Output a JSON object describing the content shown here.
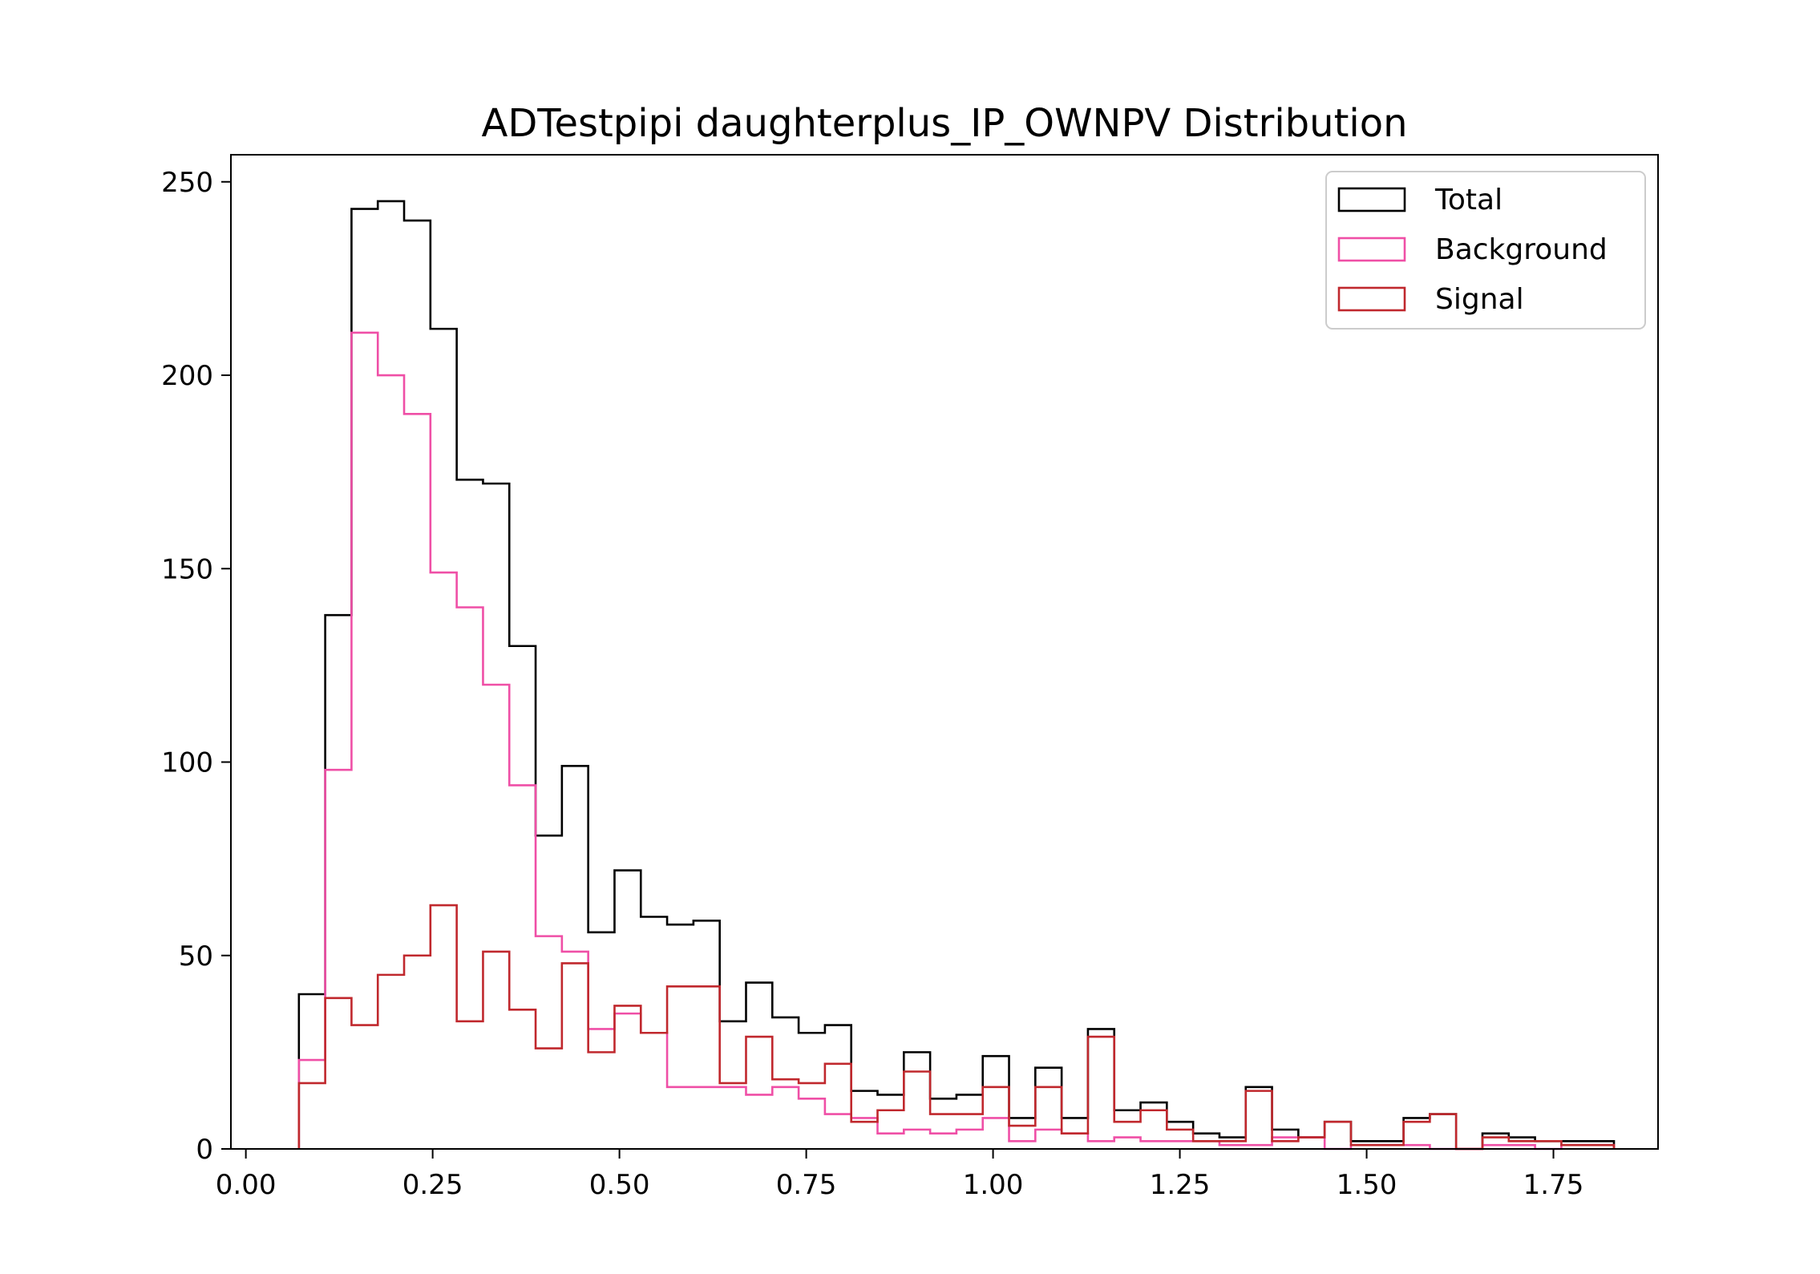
{
  "chart_data": {
    "type": "histogram",
    "title": "ADTestpipi daughterplus_IP_OWNPV Distribution",
    "xlabel": "",
    "ylabel": "",
    "xlim": [
      -0.02,
      1.89
    ],
    "ylim": [
      0,
      257
    ],
    "grid": false,
    "legend_position": "upper right",
    "x_ticks": [
      {
        "value": 0.0,
        "label": "0.00"
      },
      {
        "value": 0.25,
        "label": "0.25"
      },
      {
        "value": 0.5,
        "label": "0.50"
      },
      {
        "value": 0.75,
        "label": "0.75"
      },
      {
        "value": 1.0,
        "label": "1.00"
      },
      {
        "value": 1.25,
        "label": "1.25"
      },
      {
        "value": 1.5,
        "label": "1.50"
      },
      {
        "value": 1.75,
        "label": "1.75"
      }
    ],
    "y_ticks": [
      {
        "value": 0,
        "label": "0"
      },
      {
        "value": 50,
        "label": "50"
      },
      {
        "value": 100,
        "label": "100"
      },
      {
        "value": 150,
        "label": "150"
      },
      {
        "value": 200,
        "label": "200"
      },
      {
        "value": 250,
        "label": "250"
      }
    ],
    "bin_edges": [
      0.071,
      0.1062,
      0.1414,
      0.1766,
      0.2118,
      0.247,
      0.2822,
      0.3174,
      0.3526,
      0.3878,
      0.423,
      0.4582,
      0.4934,
      0.5286,
      0.5638,
      0.599,
      0.6342,
      0.6694,
      0.7046,
      0.7398,
      0.775,
      0.8102,
      0.8454,
      0.8806,
      0.9158,
      0.951,
      0.9862,
      1.0214,
      1.0566,
      1.0918,
      1.127,
      1.1622,
      1.1974,
      1.2326,
      1.2678,
      1.303,
      1.3382,
      1.3734,
      1.4086,
      1.4438,
      1.479,
      1.5142,
      1.5494,
      1.5846,
      1.6198,
      1.655,
      1.6902,
      1.7254,
      1.7606,
      1.7958,
      1.831
    ],
    "series": [
      {
        "name": "Total",
        "color": "#000000",
        "values": [
          40,
          138,
          243,
          245,
          240,
          212,
          173,
          172,
          130,
          81,
          99,
          56,
          72,
          60,
          58,
          59,
          33,
          43,
          34,
          30,
          32,
          15,
          14,
          25,
          13,
          14,
          24,
          8,
          21,
          8,
          31,
          10,
          12,
          7,
          4,
          3,
          16,
          5,
          3,
          7,
          2,
          2,
          8,
          9,
          0,
          4,
          3,
          2,
          2,
          2
        ]
      },
      {
        "name": "Background",
        "color": "#ef4fa6",
        "values": [
          23,
          98,
          211,
          200,
          190,
          149,
          140,
          120,
          94,
          55,
          51,
          31,
          35,
          30,
          16,
          16,
          16,
          14,
          16,
          13,
          9,
          8,
          4,
          5,
          4,
          5,
          8,
          2,
          5,
          4,
          2,
          3,
          2,
          2,
          2,
          1,
          1,
          3,
          3,
          0,
          1,
          1,
          1,
          0,
          0,
          1,
          1,
          0,
          1,
          1
        ]
      },
      {
        "name": "Signal",
        "color": "#c0282d",
        "values": [
          17,
          39,
          32,
          45,
          50,
          63,
          33,
          51,
          36,
          26,
          48,
          25,
          37,
          30,
          42,
          42,
          17,
          29,
          18,
          17,
          22,
          7,
          10,
          20,
          9,
          9,
          16,
          6,
          16,
          4,
          29,
          7,
          10,
          5,
          2,
          2,
          15,
          2,
          3,
          7,
          1,
          1,
          7,
          9,
          0,
          3,
          2,
          2,
          1,
          1
        ]
      }
    ]
  }
}
